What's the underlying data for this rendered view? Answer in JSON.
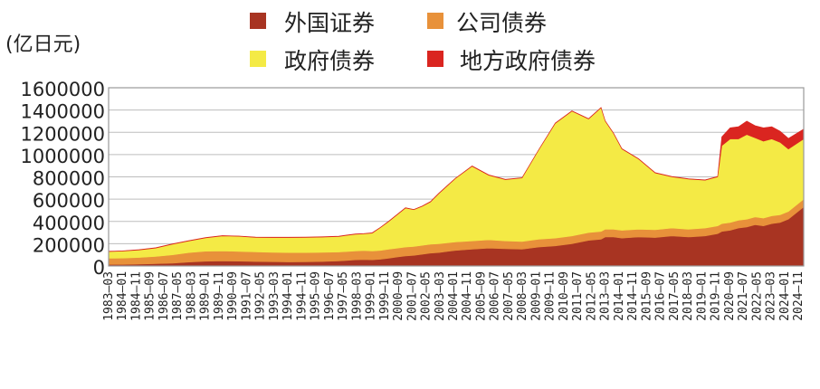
{
  "colors": {
    "foreign": "#a83422",
    "corporate": "#e8913a",
    "government": "#f4ea45",
    "local": "#da2520",
    "grid": "#bdbdbd",
    "frame": "#9a9a9a"
  },
  "chart_data": {
    "type": "area",
    "stacked": true,
    "unit_label": "(亿日元)",
    "y_ticks": [
      0,
      200000,
      400000,
      600000,
      800000,
      1000000,
      1200000,
      1400000,
      1600000
    ],
    "ylim": [
      0,
      1600000
    ],
    "grid": true,
    "legend_position": "top",
    "legend_items": [
      {
        "key": "foreign",
        "label": "外国证券",
        "color": "#a83422"
      },
      {
        "key": "corporate",
        "label": "公司债券",
        "color": "#e8913a"
      },
      {
        "key": "government",
        "label": "政府债券",
        "color": "#f4ea45"
      },
      {
        "key": "local",
        "label": "地方政府债券",
        "color": "#da2520"
      }
    ],
    "x_ticks": [
      "1983—03",
      "1984—01",
      "1984—11",
      "1985—09",
      "1986—07",
      "1987—05",
      "1988—03",
      "1989—01",
      "1989—11",
      "1990—09",
      "1991—07",
      "1992—05",
      "1993—03",
      "1994—01",
      "1994—11",
      "1995—09",
      "1996—07",
      "1997—05",
      "1998—03",
      "1999—01",
      "1999—11",
      "2000—09",
      "2001—07",
      "2002—05",
      "2003—03",
      "2004—01",
      "2004—11",
      "2005—09",
      "2006—07",
      "2007—05",
      "2008—03",
      "2009—01",
      "2009—11",
      "2010—09",
      "2011—07",
      "2012—05",
      "2013—03",
      "2014—01",
      "2014—11",
      "2015—09",
      "2016—07",
      "2017—05",
      "2018—03",
      "2019—01",
      "2019—11",
      "2020—09",
      "2021—07",
      "2022—05",
      "2023—03",
      "2024—01",
      "2024—11"
    ],
    "x": [
      1983.17,
      1984.0,
      1985.0,
      1986.0,
      1987.0,
      1988.0,
      1989.0,
      1990.0,
      1991.0,
      1992.0,
      1993.0,
      1994.0,
      1995.0,
      1996.0,
      1997.0,
      1998.0,
      1998.5,
      1999.0,
      1999.5,
      2000.0,
      2000.5,
      2001.0,
      2001.5,
      2002.0,
      2002.5,
      2003.0,
      2003.5,
      2004.0,
      2005.0,
      2006.0,
      2007.0,
      2008.0,
      2009.0,
      2010.0,
      2011.0,
      2012.0,
      2012.75,
      2013.0,
      2013.5,
      2014.0,
      2015.0,
      2016.0,
      2017.0,
      2018.0,
      2019.0,
      2019.75,
      2020.0,
      2020.5,
      2021.0,
      2021.5,
      2022.0,
      2022.5,
      2023.0,
      2023.5,
      2024.0,
      2024.92
    ],
    "series": [
      {
        "key": "foreign",
        "values": [
          14000,
          14000,
          16000,
          20000,
          25000,
          35000,
          42000,
          45000,
          43000,
          40000,
          38000,
          36000,
          37000,
          40000,
          45000,
          55000,
          58000,
          55000,
          60000,
          70000,
          80000,
          90000,
          95000,
          105000,
          115000,
          120000,
          130000,
          140000,
          150000,
          160000,
          155000,
          150000,
          170000,
          180000,
          200000,
          230000,
          240000,
          260000,
          260000,
          250000,
          260000,
          255000,
          270000,
          260000,
          270000,
          290000,
          310000,
          320000,
          340000,
          350000,
          370000,
          360000,
          380000,
          390000,
          420000,
          530000
        ]
      },
      {
        "key": "corporate",
        "values": [
          55000,
          57000,
          60000,
          65000,
          75000,
          85000,
          90000,
          90000,
          88000,
          86000,
          85000,
          84000,
          83000,
          82000,
          80000,
          80000,
          80000,
          80000,
          80000,
          80000,
          80000,
          80000,
          80000,
          80000,
          80000,
          80000,
          78000,
          75000,
          75000,
          75000,
          70000,
          70000,
          70000,
          70000,
          70000,
          70000,
          70000,
          70000,
          70000,
          70000,
          70000,
          70000,
          70000,
          70000,
          70000,
          70000,
          70000,
          70000,
          70000,
          70000,
          70000,
          70000,
          70000,
          70000,
          70000,
          70000
        ]
      },
      {
        "key": "government",
        "values": [
          60000,
          62000,
          68000,
          76000,
          95000,
          105000,
          120000,
          135000,
          135000,
          130000,
          132000,
          135000,
          136000,
          137000,
          140000,
          150000,
          150000,
          160000,
          205000,
          250000,
          300000,
          350000,
          330000,
          350000,
          380000,
          450000,
          510000,
          570000,
          670000,
          580000,
          550000,
          570000,
          800000,
          1030000,
          1120000,
          1020000,
          1110000,
          970000,
          860000,
          730000,
          630000,
          510000,
          460000,
          450000,
          430000,
          440000,
          700000,
          750000,
          730000,
          760000,
          710000,
          690000,
          690000,
          650000,
          560000,
          540000
        ]
      },
      {
        "key": "local",
        "values": [
          3000,
          3000,
          3000,
          3000,
          3000,
          3000,
          3000,
          3000,
          3000,
          3000,
          3000,
          3000,
          3000,
          3000,
          3000,
          3000,
          3000,
          3000,
          3000,
          3000,
          3000,
          3000,
          3000,
          3000,
          3000,
          3000,
          3000,
          3000,
          3000,
          3000,
          3000,
          3000,
          3000,
          3000,
          3000,
          3000,
          3000,
          3000,
          3000,
          3000,
          3000,
          3000,
          3000,
          3000,
          3000,
          3000,
          80000,
          100000,
          110000,
          120000,
          110000,
          120000,
          110000,
          100000,
          95000,
          90000
        ]
      }
    ]
  }
}
